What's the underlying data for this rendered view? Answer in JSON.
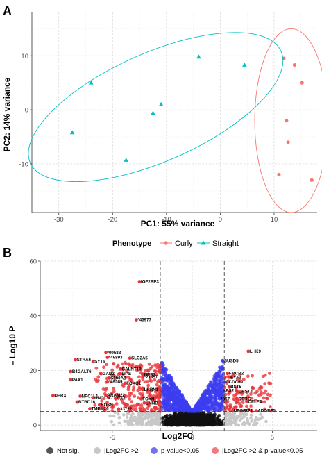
{
  "panels": {
    "a_label": "A",
    "b_label": "B"
  },
  "chart_data": [
    {
      "type": "scatter",
      "panel": "A",
      "xlabel": "PC1: 55% variance",
      "ylabel": "PC2: 14% variance",
      "xlim": [
        -35,
        18
      ],
      "ylim": [
        -19,
        18
      ],
      "xticks": [
        -30,
        -20,
        -10,
        0,
        10
      ],
      "yticks": [
        -10,
        0,
        10
      ],
      "grid": true,
      "legend": {
        "title": "Phenotype",
        "position": "bottom",
        "entries": [
          "Curly",
          "Straight"
        ]
      },
      "colors": {
        "Curly": "#f8766d",
        "Straight": "#00bfc4"
      },
      "series": [
        {
          "name": "Curly",
          "marker": "circle",
          "x": [
            11.8,
            13.8,
            15.2,
            12.3,
            12.6,
            10.9,
            17.0
          ],
          "y": [
            9.5,
            8.3,
            5.0,
            -2.0,
            -6.0,
            -12.0,
            -13.0
          ],
          "ellipse": {
            "cx": 13.2,
            "cy": -2.0,
            "rx": 6.8,
            "ry": 17.0,
            "angle": 0
          }
        },
        {
          "name": "Straight",
          "marker": "triangle",
          "x": [
            -4.0,
            4.5,
            -24.0,
            -11.0,
            -12.5,
            -27.5,
            -17.5
          ],
          "y": [
            9.8,
            8.3,
            5.0,
            1.0,
            -0.6,
            -4.2,
            -9.3
          ],
          "ellipse": {
            "cx": -12.0,
            "cy": 0.5,
            "rx": 25.5,
            "ry": 10.0,
            "angle": 24
          }
        }
      ]
    },
    {
      "type": "scatter",
      "panel": "B",
      "xlabel": "Log2FC",
      "ylabel": "– Log10 P",
      "xlim": [
        -9.5,
        7.8
      ],
      "ylim": [
        -2,
        60
      ],
      "xticks": [
        -5,
        0,
        5
      ],
      "yticks": [
        0,
        20,
        40,
        60
      ],
      "vlines": [
        -2,
        2
      ],
      "hline": 5,
      "grid": true,
      "legend": {
        "position": "bottom",
        "entries": [
          "Not sig.",
          "|Log2FC|>2",
          "p-value<0.05",
          "|Log2FC|>2 & p-value<0.05"
        ]
      },
      "colors": {
        "Not sig.": "#555555",
        "|Log2FC|>2": "#c8c8c8",
        "p-value<0.05": "#3c3cf0",
        "|Log2FC|>2 & p-value<0.05": "#e8343a"
      },
      "labeled_genes": [
        {
          "label": "IGF2BP3",
          "x": -3.3,
          "y": 52.5
        },
        {
          "label": "*43977",
          "x": -3.5,
          "y": 38.5
        },
        {
          "label": "LHK9",
          "x": 3.5,
          "y": 27.0
        },
        {
          "label": "*09588",
          "x": -5.4,
          "y": 26.5
        },
        {
          "label": "*49893",
          "x": -5.3,
          "y": 24.8
        },
        {
          "label": "SLC2A5",
          "x": -3.9,
          "y": 24.5
        },
        {
          "label": "STRA6",
          "x": -7.3,
          "y": 23.9
        },
        {
          "label": "SYT6",
          "x": -6.2,
          "y": 23.3
        },
        {
          "label": "SUSD5",
          "x": 1.9,
          "y": 23.6
        },
        {
          "label": "GALNT10",
          "x": -4.5,
          "y": 20.5
        },
        {
          "label": "B4GALT6",
          "x": -7.6,
          "y": 19.6
        },
        {
          "label": "GAD2",
          "x": -5.7,
          "y": 18.8
        },
        {
          "label": "LIPE",
          "x": -4.5,
          "y": 18.8
        },
        {
          "label": "NPR3",
          "x": -3.1,
          "y": 18.5
        },
        {
          "label": "FMCR2",
          "x": 2.2,
          "y": 18.9
        },
        {
          "label": "*21857",
          "x": -3.1,
          "y": 17.6
        },
        {
          "label": "S100A8",
          "x": -5.2,
          "y": 17.2
        },
        {
          "label": "EYA2",
          "x": 2.3,
          "y": 17.5
        },
        {
          "label": "PAX1",
          "x": -7.6,
          "y": 16.6
        },
        {
          "label": "*49589",
          "x": -5.3,
          "y": 15.9
        },
        {
          "label": "FOXO1",
          "x": -4.2,
          "y": 15.3
        },
        {
          "label": "CCDC69",
          "x": 2.0,
          "y": 15.8
        },
        {
          "label": "BST5",
          "x": 2.3,
          "y": 14.0
        },
        {
          "label": "LRRN1",
          "x": -3.1,
          "y": 13.0
        },
        {
          "label": "ABS2",
          "x": 1.8,
          "y": 12.6
        },
        {
          "label": "CHST4",
          "x": 2.8,
          "y": 12.3
        },
        {
          "label": "ARAM22",
          "x": -5.4,
          "y": 10.9
        },
        {
          "label": "DPRX",
          "x": -8.7,
          "y": 10.8
        },
        {
          "label": "NPC1L1",
          "x": -7.0,
          "y": 10.6
        },
        {
          "label": "UNC13C",
          "x": -6.2,
          "y": 10.0
        },
        {
          "label": "CA4",
          "x": -4.8,
          "y": 9.8
        },
        {
          "label": "FOXN",
          "x": -3.2,
          "y": 9.6
        },
        {
          "label": "*857",
          "x": 1.7,
          "y": 9.6
        },
        {
          "label": "BTBD16",
          "x": -7.2,
          "y": 8.4
        },
        {
          "label": "LMNB",
          "x": -3.0,
          "y": 8.1
        },
        {
          "label": "RERG",
          "x": 2.8,
          "y": 9.6
        },
        {
          "label": "CELF4",
          "x": 3.4,
          "y": 8.6
        },
        {
          "label": "SOSN",
          "x": -5.8,
          "y": 7.4
        },
        {
          "label": "TMEM26",
          "x": -6.4,
          "y": 6.0
        },
        {
          "label": "33722",
          "x": -4.6,
          "y": 5.9
        },
        {
          "label": "UPGRIP1",
          "x": 2.5,
          "y": 5.2
        },
        {
          "label": "ADGRF5",
          "x": 4.0,
          "y": 5.2
        }
      ]
    }
  ]
}
